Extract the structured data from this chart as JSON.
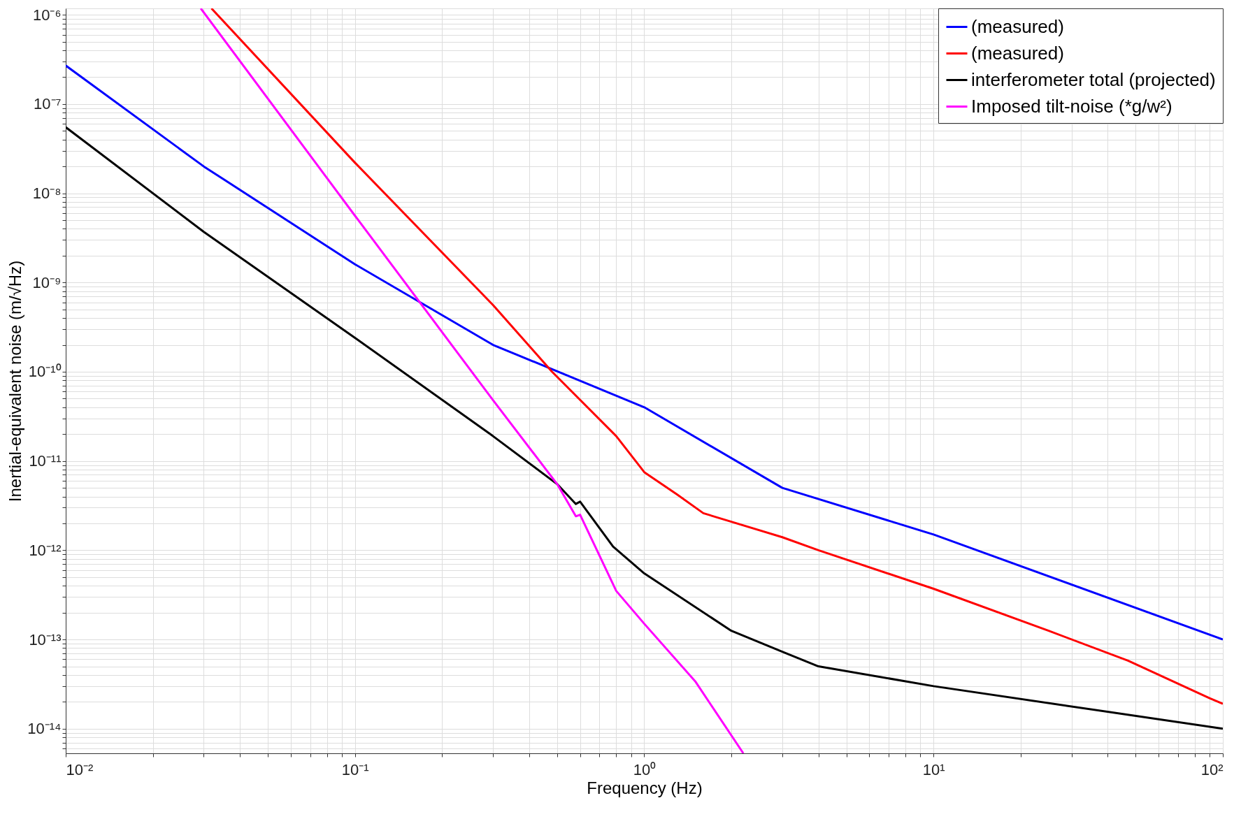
{
  "chart_data": {
    "type": "line",
    "xlabel": "Frequency (Hz)",
    "ylabel": "Inertial-equivalent noise (m/√Hz)",
    "log": "xy",
    "grid": true,
    "legend": "top right",
    "line_style": "solid",
    "marker": "none",
    "xlim": [
      0.01,
      100
    ],
    "ylim": [
      5.3e-15,
      1.18e-06
    ],
    "xticks": [
      {
        "value": 0.01,
        "label": "10⁻²"
      },
      {
        "value": 0.1,
        "label": "10⁻¹"
      },
      {
        "value": 1,
        "label": "10⁰"
      },
      {
        "value": 10,
        "label": "10¹"
      },
      {
        "value": 100,
        "label": "10²"
      }
    ],
    "yticks": [
      {
        "value": 1e-14,
        "label": "10⁻¹⁴"
      },
      {
        "value": 1e-13,
        "label": "10⁻¹³"
      },
      {
        "value": 1e-12,
        "label": "10⁻¹²"
      },
      {
        "value": 1e-11,
        "label": "10⁻¹¹"
      },
      {
        "value": 1e-10,
        "label": "10⁻¹⁰"
      },
      {
        "value": 1e-09,
        "label": "10⁻⁹"
      },
      {
        "value": 1e-08,
        "label": "10⁻⁸"
      },
      {
        "value": 1e-07,
        "label": "10⁻⁷"
      },
      {
        "value": 1e-06,
        "label": "10⁻⁶"
      }
    ],
    "series": [
      {
        "name": "(measured)",
        "color": "#0000ff",
        "x": [
          0.01,
          0.03,
          0.1,
          0.3,
          1,
          3,
          10,
          100
        ],
        "values": [
          2.7e-07,
          2e-08,
          1.6e-09,
          2e-10,
          4e-11,
          5e-12,
          1.5e-12,
          1e-13
        ]
      },
      {
        "name": "(measured)",
        "color": "#ff0000",
        "x": [
          0.0319,
          0.1,
          0.3,
          0.48,
          0.8,
          1,
          1.3,
          1.6,
          3,
          4,
          10,
          25,
          47,
          90,
          100
        ],
        "values": [
          1.18e-06,
          2.2e-08,
          5.6e-10,
          1e-10,
          1.9e-11,
          7.5e-12,
          4.2e-12,
          2.6e-12,
          1.4e-12,
          1e-12,
          3.7e-13,
          1.25e-13,
          5.8e-14,
          2.2e-14,
          1.9e-14
        ]
      },
      {
        "name": "interferometer total (projected)",
        "color": "#000000",
        "x": [
          0.01,
          0.03,
          0.1,
          0.3,
          0.5,
          0.58,
          0.6,
          0.78,
          1,
          2,
          3,
          4,
          10,
          100
        ],
        "values": [
          5.5e-08,
          3.7e-09,
          2.4e-10,
          1.9e-11,
          5.5e-12,
          3.3e-12,
          3.5e-12,
          1.1e-12,
          5.5e-13,
          1.25e-13,
          7.3e-14,
          5e-14,
          3e-14,
          1e-14
        ]
      },
      {
        "name": "Imposed tilt-noise (*g/w²)",
        "color": "#ff00ff",
        "x": [
          0.0293,
          0.1,
          0.3,
          0.5,
          0.58,
          0.6,
          0.8,
          1,
          1.5,
          2.2
        ],
        "values": [
          1.18e-06,
          5.6e-09,
          4.8e-11,
          5.5e-12,
          2.4e-12,
          2.5e-12,
          3.5e-13,
          1.5e-13,
          3.4e-14,
          5.3e-15
        ]
      }
    ]
  }
}
